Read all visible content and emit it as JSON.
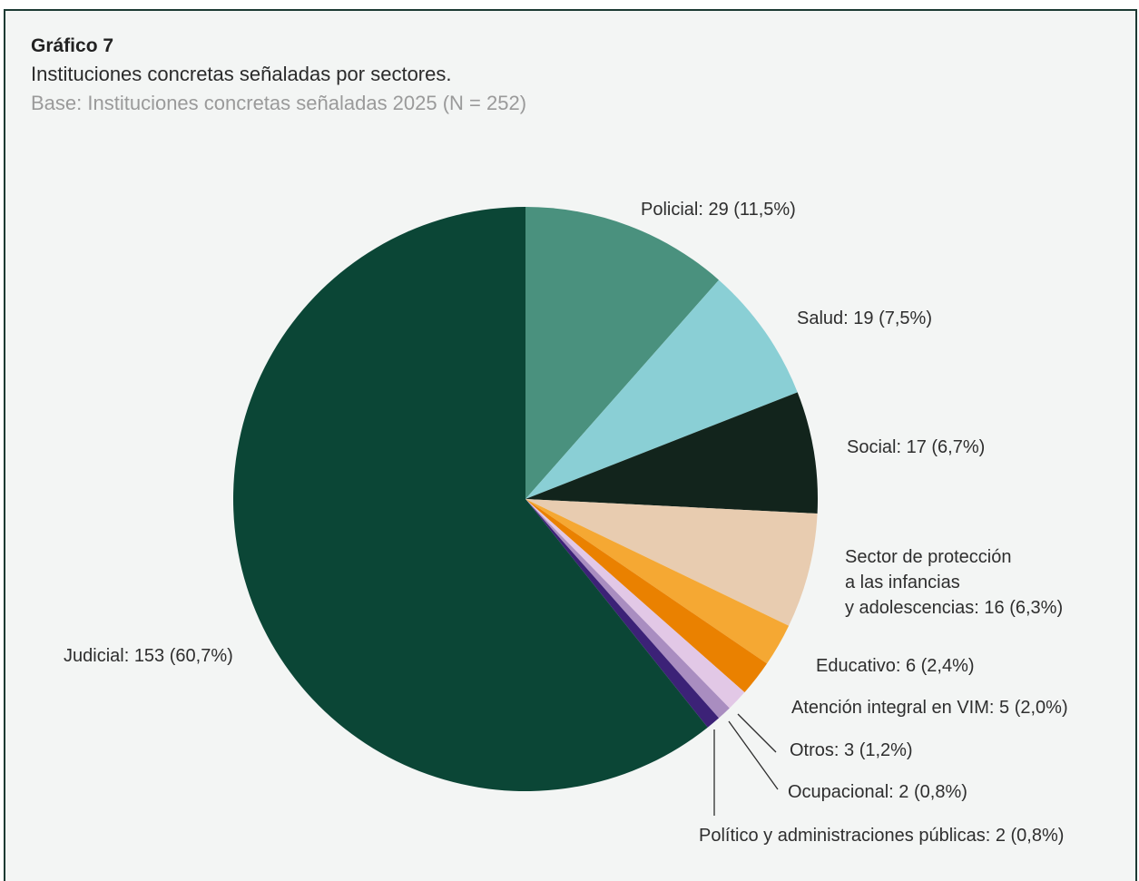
{
  "header": {
    "label": "Gráfico 7",
    "title": "Instituciones concretas señaladas por sectores.",
    "base": "Base: Instituciones concretas señaladas 2025 (N = 252)"
  },
  "chart_data": {
    "type": "pie",
    "title": "Instituciones concretas señaladas por sectores.",
    "total": 252,
    "start_angle_deg": 0,
    "direction": "clockwise",
    "legend": "none",
    "slices": [
      {
        "name": "Policial",
        "value": 29,
        "percent": 11.5,
        "color": "#4a917e",
        "label_lines": [
          "Policial: 29 (11,5%)"
        ]
      },
      {
        "name": "Salud",
        "value": 19,
        "percent": 7.5,
        "color": "#8acfd5",
        "label_lines": [
          "Salud: 19 (7,5%)"
        ]
      },
      {
        "name": "Social",
        "value": 17,
        "percent": 6.7,
        "color": "#12241c",
        "label_lines": [
          "Social: 17 (6,7%)"
        ]
      },
      {
        "name": "Sector de protección a las infancias y adolescencias",
        "value": 16,
        "percent": 6.3,
        "color": "#e8ccb0",
        "label_lines": [
          "Sector de protección",
          "a las infancias",
          "y adolescencias: 16 (6,3%)"
        ]
      },
      {
        "name": "Educativo",
        "value": 6,
        "percent": 2.4,
        "color": "#f5a833",
        "label_lines": [
          "Educativo: 6 (2,4%)"
        ]
      },
      {
        "name": "Atención integral en VIM",
        "value": 5,
        "percent": 2.0,
        "color": "#ea8100",
        "label_lines": [
          "Atención integral en VIM: 5 (2,0%)"
        ]
      },
      {
        "name": "Otros",
        "value": 3,
        "percent": 1.2,
        "color": "#e2c8e6",
        "label_lines": [
          "Otros: 3 (1,2%)"
        ]
      },
      {
        "name": "Ocupacional",
        "value": 2,
        "percent": 0.8,
        "color": "#a98dc0",
        "label_lines": [
          "Ocupacional: 2 (0,8%)"
        ]
      },
      {
        "name": "Político y administraciones públicas",
        "value": 2,
        "percent": 0.8,
        "color": "#3c2277",
        "label_lines": [
          "Político y administraciones públicas: 2 (0,8%)"
        ]
      },
      {
        "name": "Judicial",
        "value": 153,
        "percent": 60.7,
        "color": "#0b4636",
        "label_lines": [
          "Judicial: 153 (60,7%)"
        ]
      }
    ]
  }
}
